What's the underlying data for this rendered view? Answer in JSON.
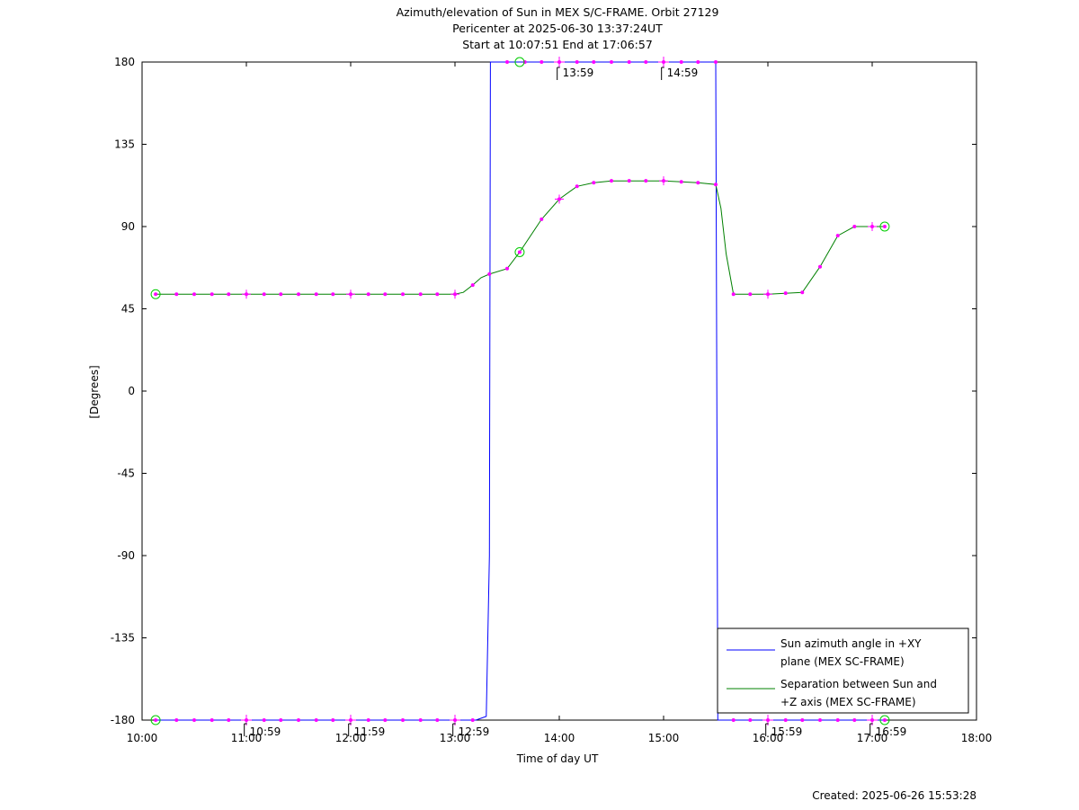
{
  "chart_data": {
    "type": "line",
    "title_lines": [
      "Azimuth/elevation of Sun in MEX S/C-FRAME.  Orbit 27129",
      "Pericenter at 2025-06-30 13:37:24UT",
      "Start at 10:07:51 End at 17:06:57"
    ],
    "xlabel": "Time of day UT",
    "ylabel": "[Degrees]",
    "xlim": [
      10,
      18
    ],
    "ylim": [
      -180,
      180
    ],
    "x_ticks": [
      10,
      11,
      12,
      13,
      14,
      15,
      16,
      17,
      18
    ],
    "x_tick_labels": [
      "10:00",
      "11:00",
      "12:00",
      "13:00",
      "14:00",
      "15:00",
      "16:00",
      "17:00",
      "18:00"
    ],
    "y_ticks": [
      180,
      135,
      90,
      45,
      0,
      -45,
      -90,
      -135,
      -180
    ],
    "y_tick_labels": [
      "180",
      "135",
      "90",
      "45",
      "0",
      "-45",
      "-90",
      "-135",
      "-180"
    ],
    "legend_position": "bottom-right",
    "footer": "Created: 2025-06-26 15:53:28",
    "series": [
      {
        "name": "Sun azimuth angle in +XY plane (MEX SC-FRAME)",
        "legend_lines": [
          "Sun azimuth angle in +XY",
          "plane (MEX SC-FRAME)"
        ],
        "color": "#0000ff",
        "x": [
          10.13,
          13.2,
          13.3,
          13.33,
          13.34,
          15.5,
          15.51,
          15.52,
          17.12
        ],
        "y": [
          -180,
          -180,
          -178,
          -90,
          180,
          180,
          0,
          -180,
          -180
        ]
      },
      {
        "name": "Separation between Sun and +Z axis (MEX SC-FRAME)",
        "legend_lines": [
          "Separation between Sun and",
          "+Z axis (MEX SC-FRAME)"
        ],
        "color": "#008000",
        "x": [
          10.13,
          13.0,
          13.08,
          13.17,
          13.25,
          13.33,
          13.5,
          13.62,
          13.83,
          14.0,
          14.17,
          14.33,
          14.5,
          14.67,
          15.0,
          15.33,
          15.5,
          15.55,
          15.6,
          15.67,
          15.83,
          16.0,
          16.33,
          16.5,
          16.67,
          16.83,
          17.12
        ],
        "y": [
          53,
          53,
          54,
          58,
          62,
          64,
          67,
          76,
          94,
          105,
          112,
          114,
          115,
          115,
          115,
          114,
          113,
          100,
          75,
          53,
          53,
          53,
          54,
          68,
          85,
          90,
          90
        ]
      }
    ],
    "azimuth_markers_bottom_x": [
      10.13,
      10.33,
      10.5,
      10.67,
      10.83,
      11.0,
      11.17,
      11.33,
      11.5,
      11.67,
      11.83,
      12.0,
      12.17,
      12.33,
      12.5,
      12.67,
      12.83,
      13.0,
      13.17
    ],
    "azimuth_markers_top_x": [
      13.5,
      13.67,
      13.83,
      14.0,
      14.17,
      14.33,
      14.5,
      14.67,
      14.83,
      15.0,
      15.17,
      15.33,
      15.5
    ],
    "azimuth_markers_bottom2_x": [
      15.67,
      15.83,
      16.0,
      16.17,
      16.33,
      16.5,
      16.67,
      16.83,
      17.0,
      17.12
    ],
    "separation_markers_x": [
      10.13,
      10.33,
      10.5,
      10.67,
      10.83,
      11.0,
      11.17,
      11.33,
      11.5,
      11.67,
      11.83,
      12.0,
      12.17,
      12.33,
      12.5,
      12.67,
      12.83,
      13.0,
      13.17,
      13.33,
      13.5,
      13.62,
      13.83,
      14.0,
      14.17,
      14.33,
      14.5,
      14.67,
      14.83,
      15.0,
      15.17,
      15.33,
      15.5,
      15.67,
      15.83,
      16.0,
      16.17,
      16.33,
      16.5,
      16.67,
      16.83,
      17.0,
      17.12
    ],
    "hour_crosses_azimuth_x": [
      11.0,
      12.0,
      13.0,
      14.0,
      15.0,
      16.0,
      17.0
    ],
    "hour_crosses_separation_x": [
      11.0,
      12.0,
      13.0,
      14.0,
      15.0,
      16.0,
      17.0
    ],
    "pericenter_circles": [
      {
        "x": 13.62,
        "y": 76
      },
      {
        "x": 13.62,
        "y": 180
      }
    ],
    "start_circles": [
      {
        "x": 10.13,
        "y": 53
      },
      {
        "x": 10.13,
        "y": -180
      }
    ],
    "end_circles": [
      {
        "x": 17.12,
        "y": 90
      },
      {
        "x": 17.12,
        "y": -180
      }
    ],
    "time_annotations": [
      {
        "text": "10:59",
        "x": 10.98,
        "y": -180
      },
      {
        "text": "11:59",
        "x": 11.98,
        "y": -180
      },
      {
        "text": "12:59",
        "x": 12.98,
        "y": -180
      },
      {
        "text": "13:59",
        "x": 13.98,
        "y": 180
      },
      {
        "text": "14:59",
        "x": 14.98,
        "y": 180
      },
      {
        "text": "15:59",
        "x": 15.98,
        "y": -180
      },
      {
        "text": "16:59",
        "x": 16.98,
        "y": -180
      }
    ]
  }
}
